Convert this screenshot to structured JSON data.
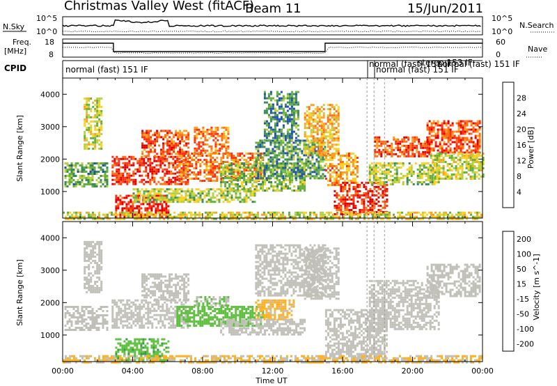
{
  "title": {
    "station": "Christmas Valley West (fitACF)",
    "beam": "Beam 11",
    "date": "15/Jun/2011"
  },
  "top_panels": {
    "nsky": {
      "label": "N.Sky",
      "ticks": [
        "10^5",
        "10^0"
      ],
      "right_label": "N.Search",
      "right_ticks": [
        "10^5",
        "10^0"
      ]
    },
    "freq": {
      "label": "Freq.",
      "unit": "[MHz]",
      "ticks": [
        "18",
        "8"
      ],
      "right_label": "Nave",
      "right_ticks": [
        "60",
        "0"
      ]
    },
    "cpid": {
      "label": "CPID",
      "modes": [
        {
          "text": "normal (fast) 151 IF"
        },
        {
          "text": "normal (fast) 151 IF"
        },
        {
          "text": "normal (fast) 151 IF"
        },
        {
          "text": "stereo 153 IF"
        },
        {
          "text": "normal (fast) 151 IF"
        }
      ],
      "mode_times": [
        0,
        17.4,
        17.8,
        18.4,
        20.0
      ]
    }
  },
  "axes": {
    "ylabel": "Slant Range [km]",
    "xlabel": "Time UT",
    "y_ticks": [
      "1000",
      "2000",
      "3000",
      "4000"
    ],
    "x_ticks": [
      "00:00",
      "04:00",
      "08:00",
      "12:00",
      "16:00",
      "20:00",
      "00:00"
    ]
  },
  "power_scale": {
    "label": "Power [dB]",
    "ticks": [
      "4",
      "8",
      "12",
      "16",
      "20",
      "24",
      "28"
    ],
    "colors": [
      "#0000ff",
      "#2050b0",
      "#3a8a5a",
      "#66b040",
      "#b8d040",
      "#ffd020",
      "#ffa020",
      "#ff7010",
      "#ff3010",
      "#e00000"
    ]
  },
  "velocity_scale": {
    "label": "Velocity [m s^-1]",
    "ticks": [
      "200",
      "100",
      "50",
      "15",
      "-15",
      "-50",
      "-100",
      "-200"
    ],
    "colors": [
      "#2040c0",
      "#3a78a0",
      "#3a9a50",
      "#60c040",
      "#c0c0b8",
      "#ffb020",
      "#ff8010",
      "#ff4010",
      "#e00000"
    ]
  },
  "chart_data": [
    {
      "type": "heatmap",
      "name": "Power",
      "x_unit": "hours UT",
      "y_unit": "km",
      "xlim": [
        0,
        24
      ],
      "ylim": [
        180,
        4500
      ],
      "color_range": [
        0,
        30
      ],
      "bands": [
        {
          "x0": 0.1,
          "x1": 2.6,
          "y0": 1150,
          "y1": 1900,
          "value": 10
        },
        {
          "x0": 1.2,
          "x1": 2.2,
          "y0": 2300,
          "y1": 3900,
          "value": 14
        },
        {
          "x0": 2.8,
          "x1": 7.2,
          "y0": 1250,
          "y1": 2100,
          "value": 26
        },
        {
          "x0": 4.5,
          "x1": 7.2,
          "y0": 2100,
          "y1": 2900,
          "value": 24
        },
        {
          "x0": 3.0,
          "x1": 6.0,
          "y0": 250,
          "y1": 900,
          "value": 27
        },
        {
          "x0": 6.5,
          "x1": 11.5,
          "y0": 1300,
          "y1": 2200,
          "value": 22
        },
        {
          "x0": 7.5,
          "x1": 9.5,
          "y0": 2200,
          "y1": 3000,
          "value": 22
        },
        {
          "x0": 9.0,
          "x1": 13.8,
          "y0": 1000,
          "y1": 1900,
          "value": 12
        },
        {
          "x0": 4.0,
          "x1": 11.0,
          "y0": 700,
          "y1": 1100,
          "value": 13
        },
        {
          "x0": 11.0,
          "x1": 15.0,
          "y0": 1400,
          "y1": 2600,
          "value": 9
        },
        {
          "x0": 11.5,
          "x1": 13.5,
          "y0": 2600,
          "y1": 4100,
          "value": 8
        },
        {
          "x0": 13.8,
          "x1": 15.8,
          "y0": 2100,
          "y1": 3700,
          "value": 18
        },
        {
          "x0": 15.0,
          "x1": 16.8,
          "y0": 1200,
          "y1": 2200,
          "value": 20
        },
        {
          "x0": 15.5,
          "x1": 18.5,
          "y0": 300,
          "y1": 1300,
          "value": 26
        },
        {
          "x0": 17.5,
          "x1": 21.5,
          "y0": 1200,
          "y1": 1900,
          "value": 13
        },
        {
          "x0": 17.8,
          "x1": 21.0,
          "y0": 2100,
          "y1": 2700,
          "value": 24
        },
        {
          "x0": 20.8,
          "x1": 23.8,
          "y0": 2200,
          "y1": 3200,
          "value": 24
        },
        {
          "x0": 21.0,
          "x1": 24.0,
          "y0": 1400,
          "y1": 2200,
          "value": 14
        },
        {
          "x0": 0.0,
          "x1": 24.0,
          "y0": 180,
          "y1": 380,
          "value": 15
        }
      ]
    },
    {
      "type": "heatmap",
      "name": "Velocity",
      "x_unit": "hours UT",
      "y_unit": "km",
      "xlim": [
        0,
        24
      ],
      "ylim": [
        180,
        4500
      ],
      "color_range": [
        -250,
        250
      ],
      "bands": [
        {
          "x0": 0.1,
          "x1": 2.6,
          "y0": 1150,
          "y1": 1900,
          "value": 0
        },
        {
          "x0": 1.2,
          "x1": 2.2,
          "y0": 2300,
          "y1": 3900,
          "value": 0
        },
        {
          "x0": 2.8,
          "x1": 7.2,
          "y0": 1250,
          "y1": 2100,
          "value": 0
        },
        {
          "x0": 4.5,
          "x1": 7.2,
          "y0": 2100,
          "y1": 2900,
          "value": 0
        },
        {
          "x0": 3.0,
          "x1": 6.0,
          "y0": 250,
          "y1": 900,
          "value": -70
        },
        {
          "x0": 6.5,
          "x1": 11.5,
          "y0": 1300,
          "y1": 1900,
          "value": -60
        },
        {
          "x0": 7.5,
          "x1": 9.5,
          "y0": 1900,
          "y1": 2200,
          "value": -30
        },
        {
          "x0": 11.0,
          "x1": 13.2,
          "y0": 1500,
          "y1": 2100,
          "value": 40
        },
        {
          "x0": 9.0,
          "x1": 13.8,
          "y0": 1000,
          "y1": 1500,
          "value": 0
        },
        {
          "x0": 11.0,
          "x1": 15.0,
          "y0": 2200,
          "y1": 3800,
          "value": 0
        },
        {
          "x0": 13.8,
          "x1": 15.8,
          "y0": 2100,
          "y1": 3700,
          "value": 0
        },
        {
          "x0": 15.0,
          "x1": 18.5,
          "y0": 300,
          "y1": 1800,
          "value": 0
        },
        {
          "x0": 17.5,
          "x1": 21.5,
          "y0": 1200,
          "y1": 2700,
          "value": 0
        },
        {
          "x0": 20.8,
          "x1": 23.8,
          "y0": 2200,
          "y1": 3200,
          "value": 0
        },
        {
          "x0": 0.0,
          "x1": 24.0,
          "y0": 180,
          "y1": 380,
          "value": 30
        }
      ]
    }
  ]
}
